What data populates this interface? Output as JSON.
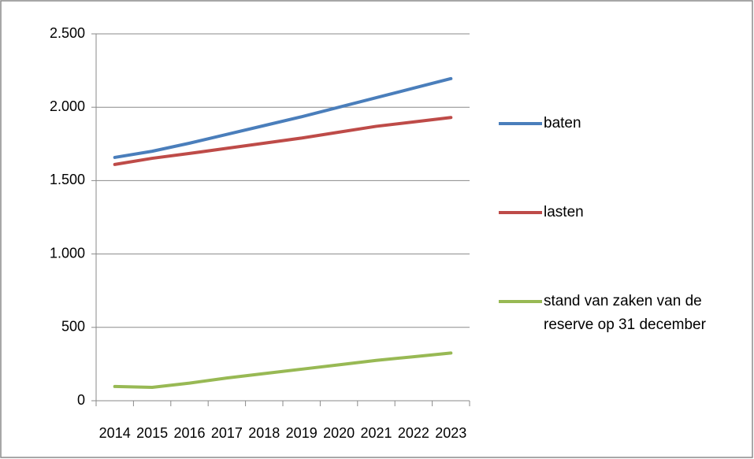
{
  "chart_data": {
    "type": "line",
    "categories": [
      "2014",
      "2015",
      "2016",
      "2017",
      "2018",
      "2019",
      "2020",
      "2021",
      "2022",
      "2023"
    ],
    "series": [
      {
        "name": "baten",
        "color": "#4a7ebb",
        "values": [
          1658,
          1700,
          1755,
          1815,
          1875,
          1935,
          2000,
          2065,
          2130,
          2195
        ]
      },
      {
        "name": "lasten",
        "color": "#be4b48",
        "values": [
          1610,
          1652,
          1685,
          1720,
          1755,
          1790,
          1830,
          1870,
          1900,
          1930
        ]
      },
      {
        "name": "stand van zaken van de reserve op 31 december",
        "color": "#98b954",
        "values": [
          97,
          91,
          120,
          155,
          185,
          215,
          245,
          275,
          300,
          325
        ]
      }
    ],
    "ylim": [
      0,
      2500
    ],
    "yticks": [
      0,
      500,
      {
        "value": 1000,
        "label": "1.000"
      },
      {
        "value": 1500,
        "label": "1.500"
      },
      {
        "value": 2000,
        "label": "2.000"
      },
      {
        "value": 2500,
        "label": "2.500"
      }
    ],
    "grid": true,
    "legend": "right"
  }
}
